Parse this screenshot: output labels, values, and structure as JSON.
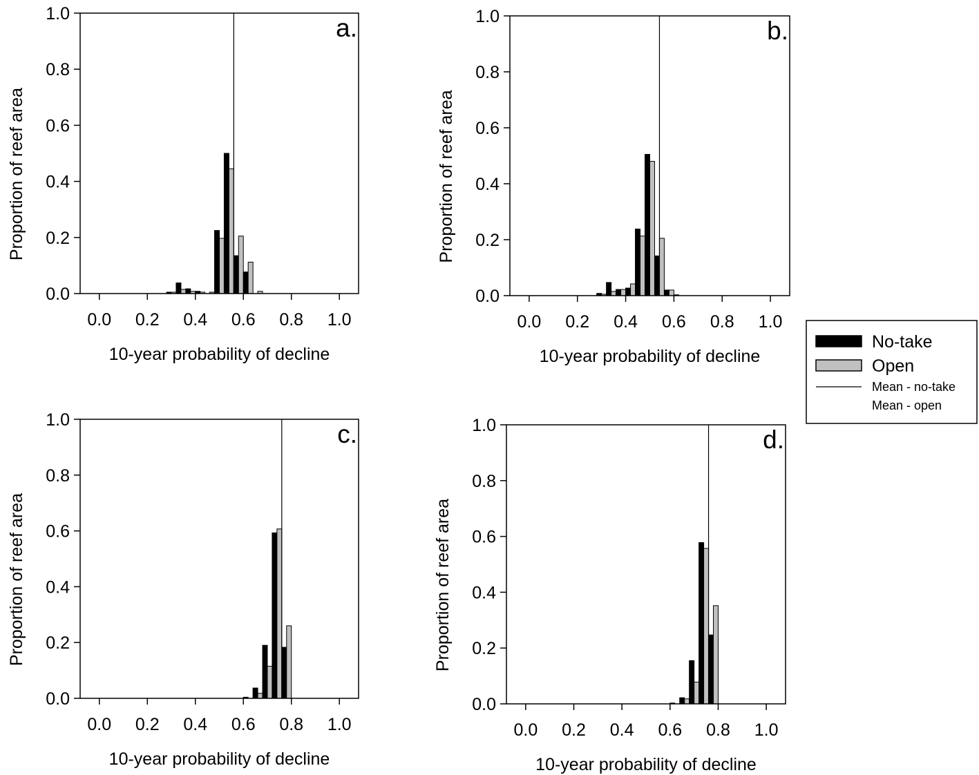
{
  "chart_data": [
    {
      "type": "bar",
      "panel_label": "a.",
      "xlabel": "10-year probability of decline",
      "ylabel": "Proportion of reef area",
      "xlim": [
        -0.08,
        1.08
      ],
      "ylim": [
        0,
        1.0
      ],
      "xticks": [
        "0.0",
        "0.2",
        "0.4",
        "0.6",
        "0.8",
        "1.0"
      ],
      "yticks": [
        "0.0",
        "0.2",
        "0.4",
        "0.6",
        "0.8",
        "1.0"
      ],
      "bin_width": 0.04,
      "bin_centers": [
        0.3,
        0.34,
        0.38,
        0.42,
        0.46,
        0.5,
        0.54,
        0.58,
        0.62,
        0.66,
        0.7
      ],
      "series": [
        {
          "name": "No-take",
          "values": [
            0.005,
            0.038,
            0.017,
            0.008,
            0.0,
            0.225,
            0.5,
            0.135,
            0.077,
            0.0,
            0.0
          ]
        },
        {
          "name": "Open",
          "values": [
            0.005,
            0.015,
            0.008,
            0.005,
            0.005,
            0.197,
            0.445,
            0.205,
            0.112,
            0.008,
            0.0
          ]
        }
      ],
      "mean_line": 0.56
    },
    {
      "type": "bar",
      "panel_label": "b.",
      "xlabel": "10-year probability of decline",
      "ylabel": "Proportion of reef area",
      "xlim": [
        -0.08,
        1.08
      ],
      "ylim": [
        0,
        1.0
      ],
      "xticks": [
        "0.0",
        "0.2",
        "0.4",
        "0.6",
        "0.8",
        "1.0"
      ],
      "yticks": [
        "0.0",
        "0.2",
        "0.4",
        "0.6",
        "0.8",
        "1.0"
      ],
      "bin_width": 0.04,
      "bin_centers": [
        0.3,
        0.34,
        0.38,
        0.42,
        0.46,
        0.5,
        0.54,
        0.58,
        0.62,
        0.66,
        0.7
      ],
      "series": [
        {
          "name": "No-take",
          "values": [
            0.008,
            0.047,
            0.022,
            0.027,
            0.238,
            0.505,
            0.142,
            0.02,
            0.003,
            0.0,
            0.0
          ]
        },
        {
          "name": "Open",
          "values": [
            0.005,
            0.015,
            0.022,
            0.042,
            0.213,
            0.48,
            0.205,
            0.02,
            0.0,
            0.0,
            0.0
          ]
        }
      ],
      "mean_line": 0.54
    },
    {
      "type": "bar",
      "panel_label": "c.",
      "xlabel": "10-year probability of decline",
      "ylabel": "Proportion of reef area",
      "xlim": [
        -0.08,
        1.08
      ],
      "ylim": [
        0,
        1.0
      ],
      "xticks": [
        "0.0",
        "0.2",
        "0.4",
        "0.6",
        "0.8",
        "1.0"
      ],
      "yticks": [
        "0.0",
        "0.2",
        "0.4",
        "0.6",
        "0.8",
        "1.0"
      ],
      "bin_width": 0.04,
      "bin_centers": [
        0.62,
        0.66,
        0.7,
        0.74,
        0.78,
        0.82
      ],
      "series": [
        {
          "name": "No-take",
          "values": [
            0.004,
            0.037,
            0.19,
            0.593,
            0.183,
            0.0
          ]
        },
        {
          "name": "Open",
          "values": [
            0.0,
            0.018,
            0.115,
            0.607,
            0.26,
            0.0
          ]
        }
      ],
      "mean_line": 0.76
    },
    {
      "type": "bar",
      "panel_label": "d.",
      "xlabel": "10-year probability of decline",
      "ylabel": "Proportion of reef area",
      "xlim": [
        -0.08,
        1.08
      ],
      "ylim": [
        0,
        1.0
      ],
      "xticks": [
        "0.0",
        "0.2",
        "0.4",
        "0.6",
        "0.8",
        "1.0"
      ],
      "yticks": [
        "0.0",
        "0.2",
        "0.4",
        "0.6",
        "0.8",
        "1.0"
      ],
      "bin_width": 0.04,
      "bin_centers": [
        0.62,
        0.66,
        0.7,
        0.74,
        0.78,
        0.82
      ],
      "series": [
        {
          "name": "No-take",
          "values": [
            0.003,
            0.022,
            0.155,
            0.578,
            0.247,
            0.0
          ]
        },
        {
          "name": "Open",
          "values": [
            0.0,
            0.018,
            0.078,
            0.557,
            0.352,
            0.0
          ]
        }
      ],
      "mean_line": 0.76
    }
  ],
  "legend": {
    "items": [
      {
        "label": "No-take",
        "kind": "bar",
        "color": "#000000"
      },
      {
        "label": "Open",
        "kind": "bar",
        "color": "#c0c0c0"
      },
      {
        "label": "Mean - no-take",
        "kind": "line",
        "color": "#000000"
      },
      {
        "label": "Mean  - open",
        "kind": "none",
        "color": "#c0c0c0"
      }
    ]
  },
  "colors": {
    "no_take": "#000000",
    "open": "#c0c0c0",
    "axis": "#000000",
    "mean_line": "#000000"
  }
}
